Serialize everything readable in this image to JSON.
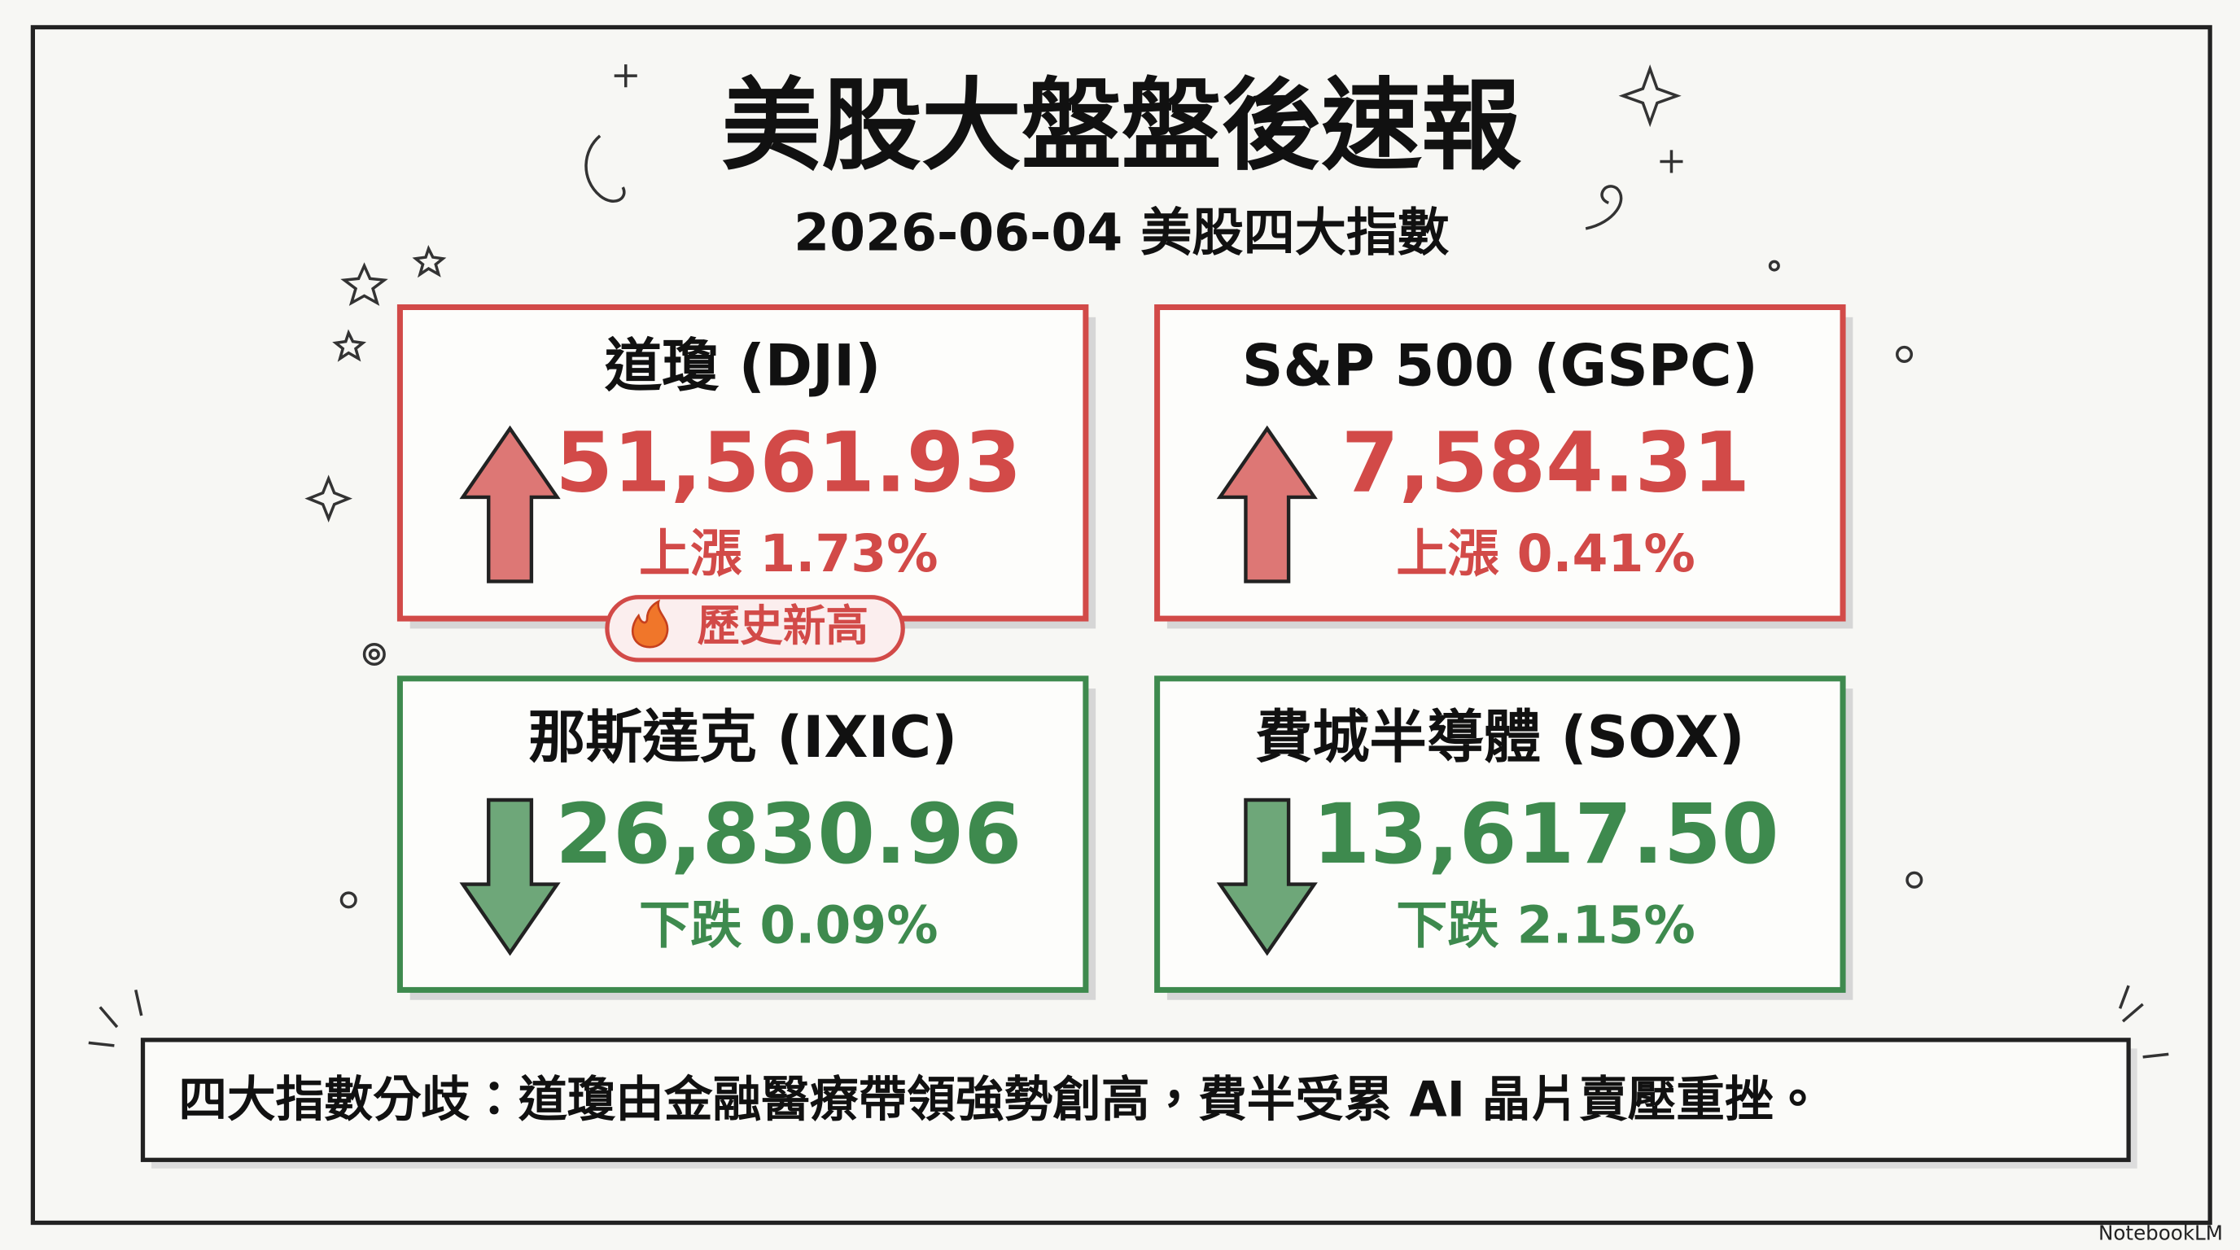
{
  "header": {
    "title": "美股大盤盤後速報",
    "subtitle": "2026-06-04 美股四大指數"
  },
  "cards": [
    {
      "name": "道瓊 (DJI)",
      "value": "51,561.93",
      "change": "上漲 1.73%",
      "arrow": "up",
      "color": "#d24a48",
      "badge": "歷史新高"
    },
    {
      "name": "S&P 500 (GSPC)",
      "value": "7,584.31",
      "change": "上漲 0.41%",
      "arrow": "up",
      "color": "#d24a48"
    },
    {
      "name": "那斯達克 (IXIC)",
      "value": "26,830.96",
      "change": "下跌 0.09%",
      "arrow": "down",
      "color": "#3e8a4e"
    },
    {
      "name": "費城半導體 (SOX)",
      "value": "13,617.50",
      "change": "下跌 2.15%",
      "arrow": "down",
      "color": "#3e8a4e"
    }
  ],
  "footer": {
    "summary": "四大指數分歧：道瓊由金融醫療帶領強勢創高，費半受累 AI 晶片賣壓重挫。"
  },
  "brand": "NotebookLM"
}
